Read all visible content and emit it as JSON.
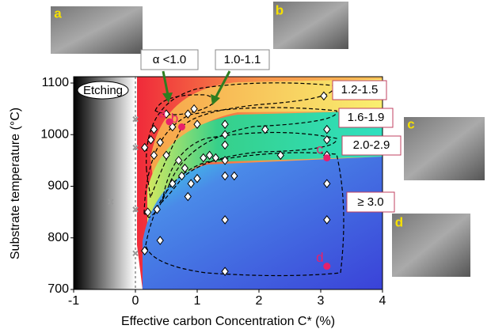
{
  "chart_data": {
    "type": "scatter",
    "xlabel": "Effective carbon Concentration  C* (%)",
    "ylabel": "Substrate temperature (°C)",
    "xlim": [
      -1,
      4
    ],
    "ylim": [
      700,
      1100
    ],
    "xticks": [
      -1,
      0,
      1,
      2,
      3,
      4
    ],
    "yticks": [
      700,
      800,
      900,
      1000,
      1100
    ],
    "series": [
      {
        "marker": "diamond",
        "color": "#ffffff",
        "x": [
          0.15,
          0.25,
          0.3,
          0.4,
          0.5,
          0.6,
          0.85,
          0.95,
          1.0,
          0.5,
          0.3,
          0.2,
          0.35,
          0.15,
          0.4,
          0.6,
          0.7,
          0.8,
          0.9,
          0.85,
          0.75,
          1.0,
          1.1,
          1.2,
          1.3,
          1.45,
          1.45,
          1.45,
          1.45,
          1.45,
          1.45,
          1.45,
          1.6,
          2.1,
          2.35,
          3.05,
          3.1,
          3.1,
          3.1,
          3.1,
          3.1
        ],
        "y": [
          975,
          990,
          960,
          985,
          960,
          1015,
          1040,
          1050,
          1020,
          1040,
          1010,
          850,
          855,
          775,
          795,
          905,
          950,
          935,
          905,
          880,
          920,
          915,
          955,
          960,
          955,
          1020,
          1000,
          980,
          950,
          920,
          835,
          735,
          920,
          1010,
          960,
          1075,
          1010,
          990,
          960,
          905,
          835
        ]
      },
      {
        "marker": "x",
        "color": "#999999",
        "x": [
          0,
          0,
          -0.4,
          0,
          0
        ],
        "y": [
          1030,
          975,
          870,
          855,
          770
        ]
      },
      {
        "marker": "dot",
        "color": "#e8206a",
        "x": [
          0.55,
          0.75,
          3.1,
          3.1
        ],
        "y": [
          1025,
          1015,
          955,
          745
        ],
        "labels": [
          "a",
          "b",
          "c",
          "d"
        ]
      }
    ],
    "etching_label": "Etching",
    "region_labels": [
      "α <1.0",
      "1.0-1.1",
      "1.2-1.5",
      "1.6-1.9",
      "2.0-2.9",
      "≥ 3.0"
    ],
    "image_labels": [
      "a",
      "b",
      "c",
      "d"
    ]
  }
}
